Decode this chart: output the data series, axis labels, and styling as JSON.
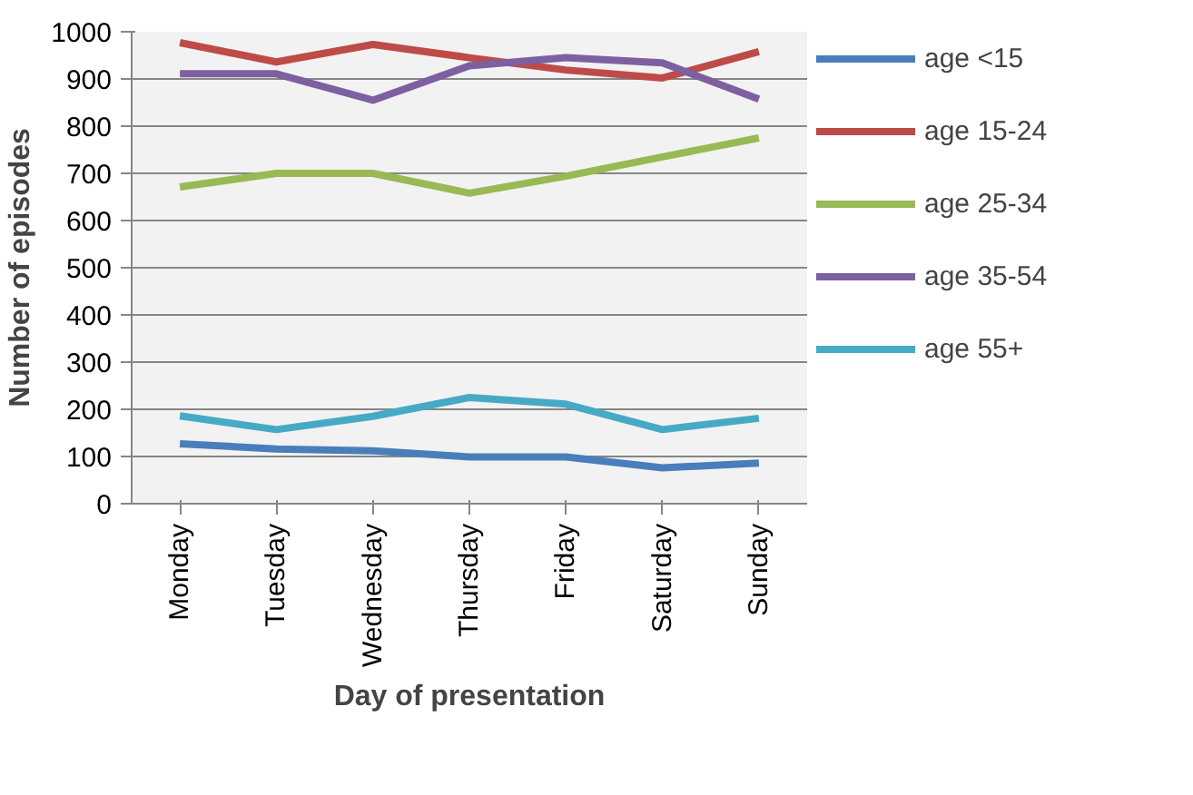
{
  "chart_data": {
    "type": "line",
    "xlabel": "Day of presentation",
    "ylabel": "Number of episodes",
    "categories": [
      "Monday",
      "Tuesday",
      "Wednesday",
      "Thursday",
      "Friday",
      "Saturday",
      "Sunday"
    ],
    "series": [
      {
        "name": "age <15",
        "color": "#4a7ebb",
        "values": [
          127,
          116,
          112,
          99,
          99,
          76,
          86
        ]
      },
      {
        "name": "age 15-24",
        "color": "#be4b48",
        "values": [
          977,
          936,
          973,
          945,
          919,
          902,
          958
        ]
      },
      {
        "name": "age 25-34",
        "color": "#98b954",
        "values": [
          671,
          700,
          700,
          658,
          694,
          735,
          775
        ]
      },
      {
        "name": "age 35-54",
        "color": "#7d60a0",
        "values": [
          911,
          911,
          855,
          928,
          945,
          934,
          857
        ]
      },
      {
        "name": "age 55+",
        "color": "#46aac5",
        "values": [
          186,
          157,
          185,
          225,
          211,
          157,
          181
        ]
      }
    ],
    "ylim": [
      0,
      1000
    ],
    "yticks": [
      0,
      100,
      200,
      300,
      400,
      500,
      600,
      700,
      800,
      900,
      1000
    ],
    "grid": "y",
    "legend": "right",
    "marker": "none",
    "line_style": "solid"
  }
}
